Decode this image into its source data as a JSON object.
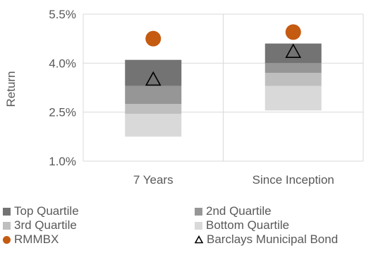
{
  "chart_data": {
    "type": "floating-bar",
    "ylabel": "Return",
    "ylim": [
      1.0,
      5.5
    ],
    "y_ticks": [
      "1.0%",
      "2.5%",
      "4.0%",
      "5.5%"
    ],
    "y_tick_values": [
      1.0,
      2.5,
      4.0,
      5.5
    ],
    "categories": [
      "7 Years",
      "Since Inception"
    ],
    "series": [
      {
        "name": "Bottom Quartile",
        "color": "#d9d9d9",
        "ranges": [
          [
            1.75,
            2.45
          ],
          [
            2.55,
            3.3
          ]
        ]
      },
      {
        "name": "3rd Quartile",
        "color": "#bfbfbf",
        "ranges": [
          [
            2.45,
            2.75
          ],
          [
            3.3,
            3.7
          ]
        ]
      },
      {
        "name": "2nd Quartile",
        "color": "#969696",
        "ranges": [
          [
            2.75,
            3.3
          ],
          [
            3.7,
            4.0
          ]
        ]
      },
      {
        "name": "Top Quartile",
        "color": "#737373",
        "ranges": [
          [
            3.3,
            4.1
          ],
          [
            4.0,
            4.6
          ]
        ]
      }
    ],
    "markers": [
      {
        "name": "RMMBX",
        "shape": "circle",
        "color": "#c55a11",
        "values": [
          4.75,
          4.95
        ]
      },
      {
        "name": "Barclays Municipal Bond",
        "shape": "triangle",
        "color": "#000000",
        "values": [
          3.5,
          4.35
        ]
      }
    ],
    "grid": true,
    "legend_position": "bottom"
  },
  "legend": [
    {
      "label": "Top Quartile",
      "shape": "square",
      "color": "#737373"
    },
    {
      "label": "2nd Quartile",
      "shape": "square",
      "color": "#969696"
    },
    {
      "label": "3rd Quartile",
      "shape": "square",
      "color": "#bfbfbf"
    },
    {
      "label": "Bottom Quartile",
      "shape": "square",
      "color": "#d9d9d9"
    },
    {
      "label": "RMMBX",
      "shape": "circle",
      "color": "#c55a11"
    },
    {
      "label": "Barclays Municipal Bond",
      "shape": "triangle",
      "color": "#000000"
    }
  ]
}
